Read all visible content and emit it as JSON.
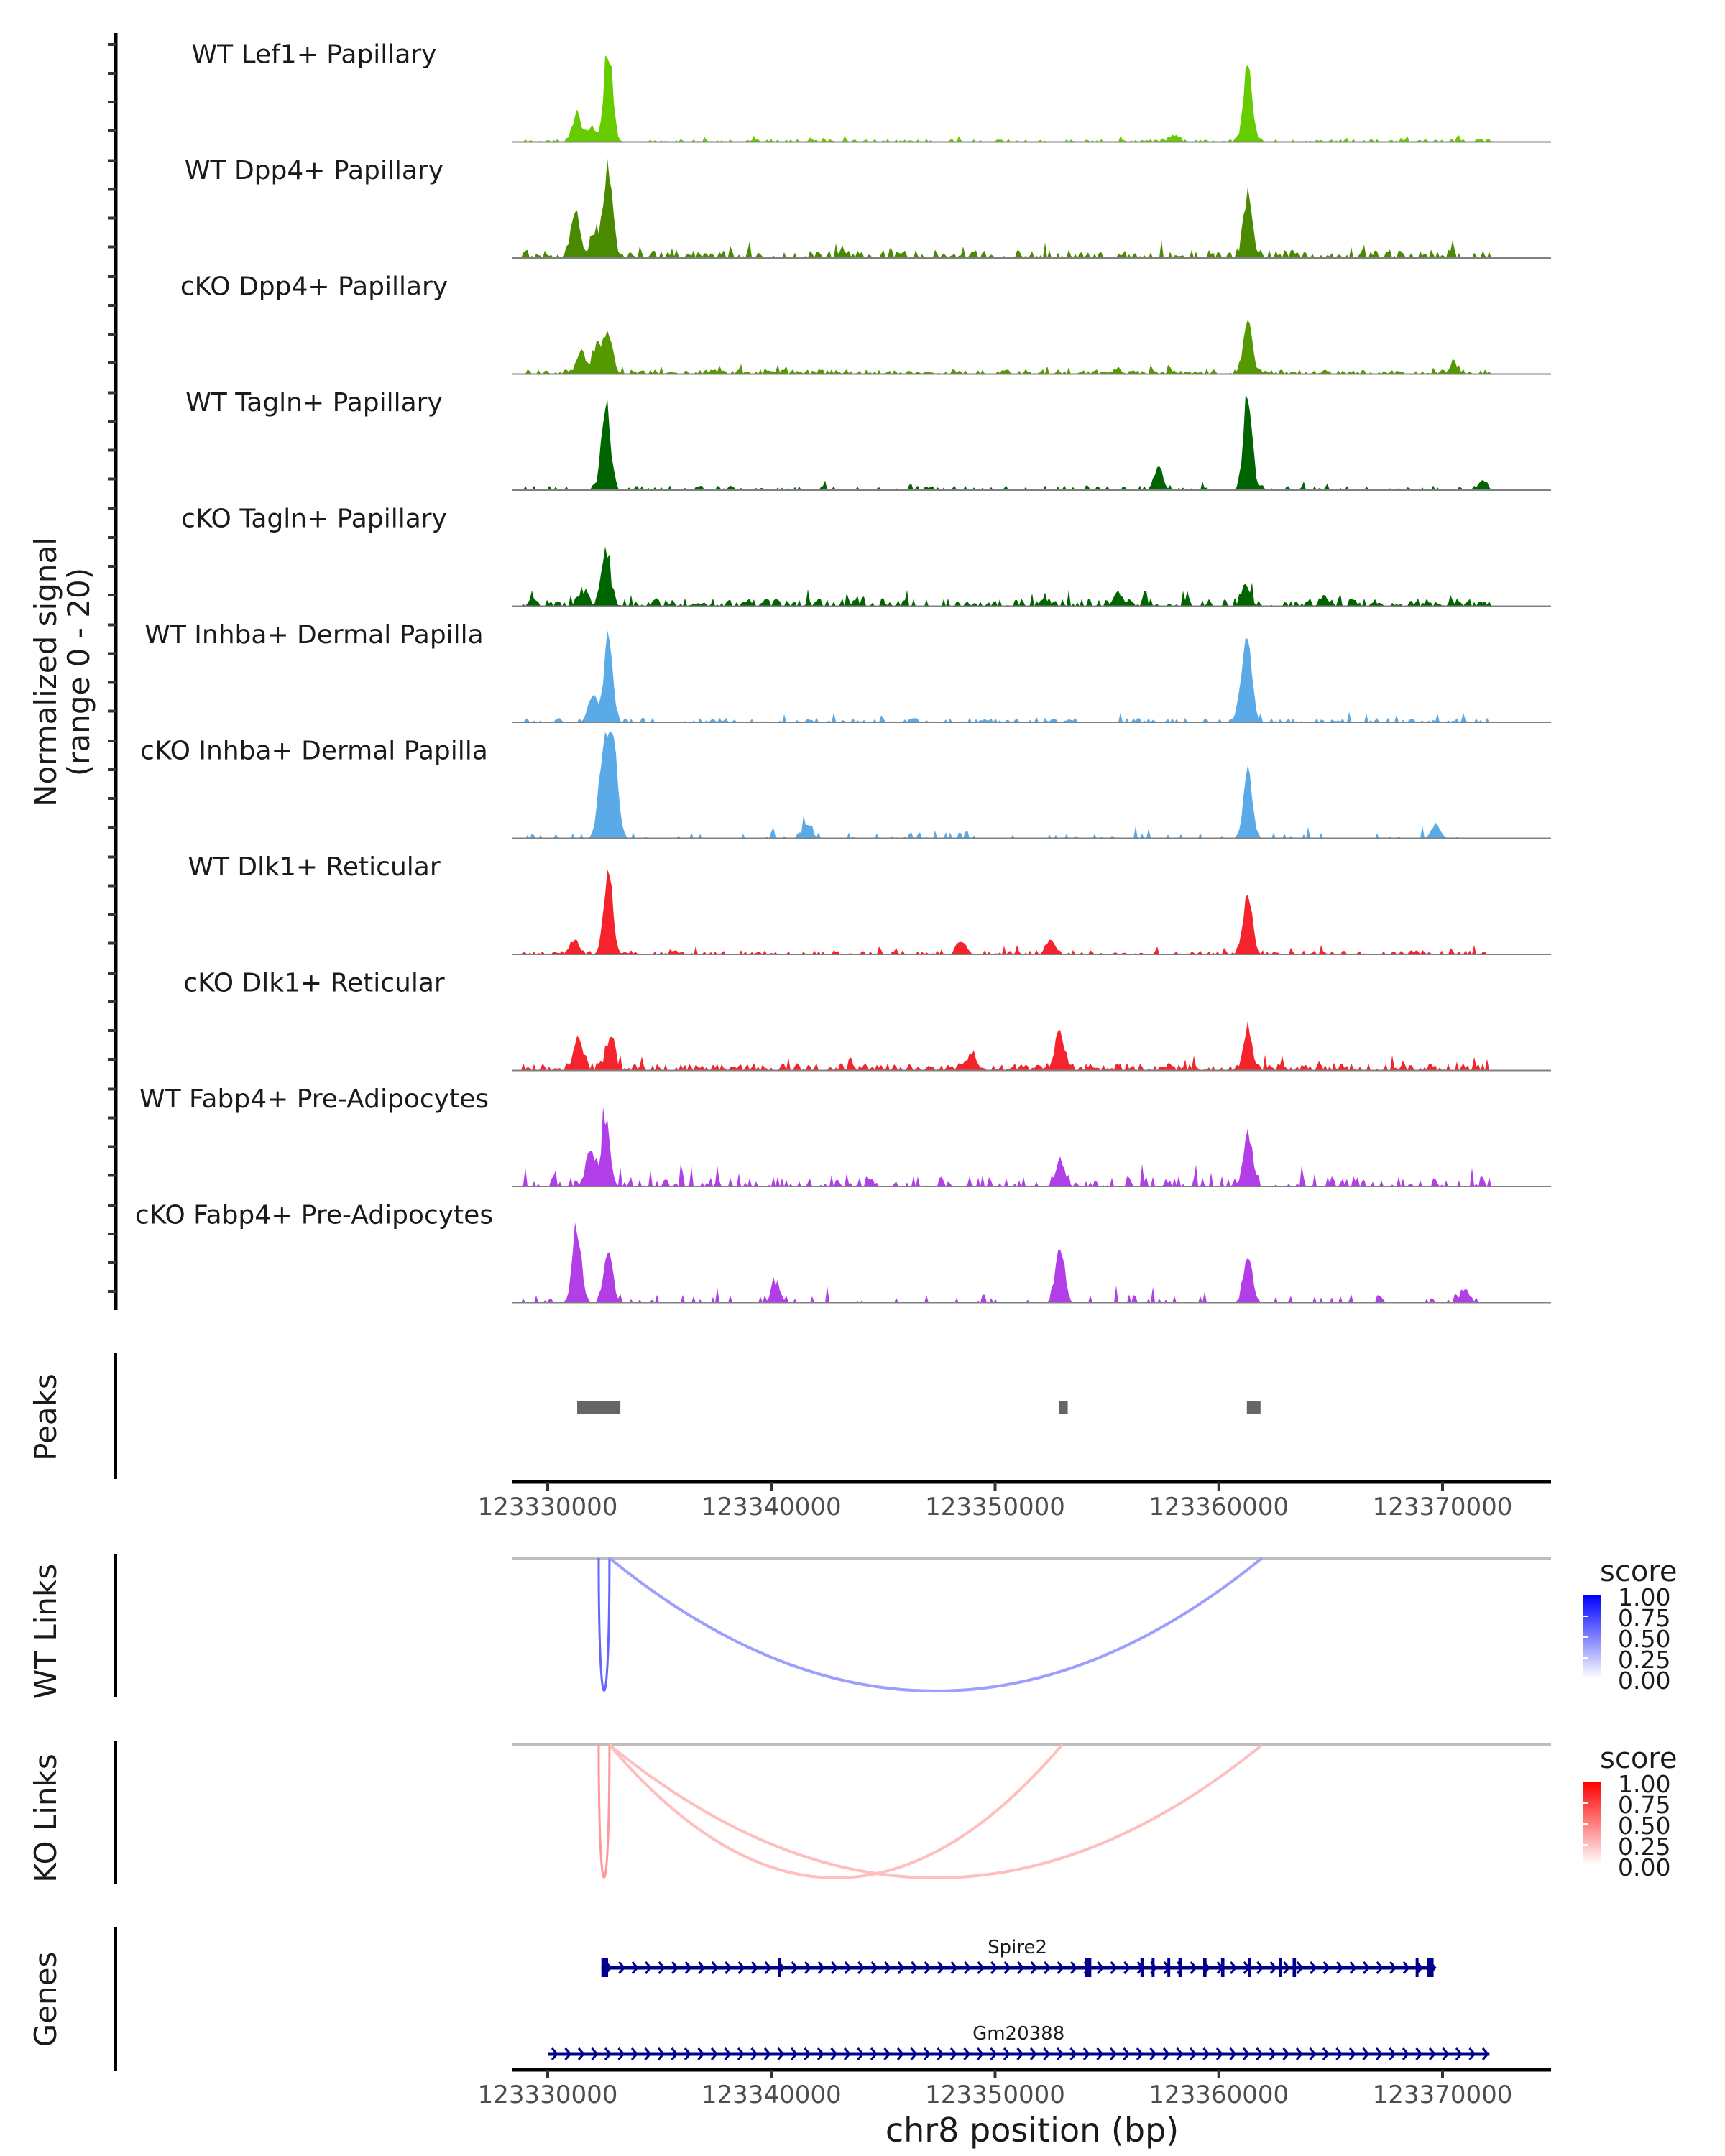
{
  "chart_data": {
    "type": "area",
    "title": "",
    "region": {
      "chrom": "chr8",
      "start": 123328425,
      "end": 123374115
    },
    "ylabel": [
      "Normalized signal",
      "(range 0 - 20)"
    ],
    "ylim": [
      0,
      20
    ],
    "xlabel": "chr8 position (bp)",
    "x_ticks": [
      123330000,
      123340000,
      123350000,
      123360000,
      123370000
    ],
    "x_tick_labels": [
      "123330000",
      "123340000",
      "123350000",
      "123360000",
      "123370000"
    ],
    "coverage_tracks": [
      {
        "name": "WT Lef1+ Papillary",
        "color": "#66cc00",
        "noise": 0.6,
        "density": 0.55,
        "peaks": [
          [
            123331300,
            6
          ],
          [
            123331900,
            3
          ],
          [
            123332700,
            20
          ],
          [
            123361300,
            16
          ],
          [
            123358000,
            1.5
          ]
        ]
      },
      {
        "name": "WT Dpp4+ Papillary",
        "color": "#4a8a00",
        "noise": 1.6,
        "density": 0.7,
        "peaks": [
          [
            123331250,
            10
          ],
          [
            123332100,
            5
          ],
          [
            123332700,
            20
          ],
          [
            123361300,
            14
          ]
        ]
      },
      {
        "name": "cKO Dpp4+ Papillary",
        "color": "#559900",
        "noise": 0.9,
        "density": 0.75,
        "peaks": [
          [
            123331500,
            5
          ],
          [
            123332200,
            6
          ],
          [
            123332700,
            9
          ],
          [
            123361300,
            11
          ],
          [
            123370500,
            2
          ]
        ]
      },
      {
        "name": "WT Tagln+ Papillary",
        "color": "#006400",
        "noise": 0.9,
        "density": 0.35,
        "peaks": [
          [
            123332600,
            20
          ],
          [
            123357300,
            5
          ],
          [
            123361300,
            20
          ],
          [
            123371800,
            2
          ]
        ]
      },
      {
        "name": "cKO Tagln+ Papillary",
        "color": "#006400",
        "noise": 1.5,
        "density": 0.7,
        "peaks": [
          [
            123332600,
            12
          ],
          [
            123331600,
            3
          ],
          [
            123361200,
            4
          ],
          [
            123355500,
            3
          ]
        ]
      },
      {
        "name": "WT Inhba+ Dermal Papilla",
        "color": "#5aaae8",
        "noise": 0.9,
        "density": 0.4,
        "peaks": [
          [
            123332700,
            18
          ],
          [
            123332000,
            6
          ],
          [
            123361300,
            16
          ],
          [
            123361000,
            5
          ]
        ]
      },
      {
        "name": "cKO Inhba+ Dermal Papilla",
        "color": "#5aaae8",
        "noise": 1.2,
        "density": 0.18,
        "peaks": [
          [
            123332700,
            16
          ],
          [
            123332400,
            11
          ],
          [
            123333000,
            14
          ],
          [
            123361300,
            15
          ],
          [
            123341600,
            3
          ],
          [
            123369700,
            3
          ]
        ]
      },
      {
        "name": "WT Dlk1+ Reticular",
        "color": "#f5232b",
        "noise": 0.8,
        "density": 0.45,
        "peaks": [
          [
            123332700,
            18
          ],
          [
            123331200,
            3
          ],
          [
            123361300,
            14
          ],
          [
            123348500,
            3
          ],
          [
            123352500,
            3
          ]
        ]
      },
      {
        "name": "cKO Dlk1+ Reticular",
        "color": "#f5232b",
        "noise": 1.4,
        "density": 0.8,
        "peaks": [
          [
            123331400,
            7
          ],
          [
            123332800,
            7
          ],
          [
            123352900,
            8
          ],
          [
            123361300,
            8
          ],
          [
            123349000,
            3
          ]
        ]
      },
      {
        "name": "WT Fabp4+ Pre-Adipocytes",
        "color": "#b23ee8",
        "noise": 2.0,
        "density": 0.45,
        "peaks": [
          [
            123332600,
            14
          ],
          [
            123331900,
            8
          ],
          [
            123352900,
            6
          ],
          [
            123361300,
            11
          ]
        ]
      },
      {
        "name": "cKO Fabp4+ Pre-Adipocytes",
        "color": "#b23ee8",
        "noise": 1.6,
        "density": 0.22,
        "peaks": [
          [
            123331300,
            16
          ],
          [
            123332700,
            11
          ],
          [
            123352900,
            13
          ],
          [
            123361300,
            9
          ],
          [
            123340200,
            4
          ],
          [
            123371000,
            3
          ]
        ]
      }
    ],
    "peaks_track": {
      "label": "Peaks",
      "color": "#666666",
      "regions": [
        [
          123331318,
          123333248
        ],
        [
          123352862,
          123353248
        ],
        [
          123361254,
          123361865
        ]
      ]
    },
    "link_tracks": [
      {
        "label": "WT Links",
        "baseline_color": "#bebebe",
        "links": [
          {
            "start": 123332280,
            "end": 123332760,
            "score": 0.6
          },
          {
            "start": 123332760,
            "end": 123361930,
            "score": 0.38
          }
        ],
        "legend": {
          "title": "score",
          "low_color": "#ffffff",
          "high_color": "#0000ff",
          "breaks": [
            "1.00",
            "0.75",
            "0.50",
            "0.25",
            "0.00"
          ]
        }
      },
      {
        "label": "KO Links",
        "baseline_color": "#bebebe",
        "links": [
          {
            "start": 123332280,
            "end": 123332760,
            "score": 0.4
          },
          {
            "start": 123332760,
            "end": 123352990,
            "score": 0.25
          },
          {
            "start": 123332760,
            "end": 123361930,
            "score": 0.25
          }
        ],
        "legend": {
          "title": "score",
          "low_color": "#ffffff",
          "high_color": "#ff0000",
          "breaks": [
            "1.00",
            "0.75",
            "0.50",
            "0.25",
            "0.00"
          ]
        }
      }
    ],
    "genes_track": {
      "label": "Genes",
      "color": "#00008b",
      "genes": [
        {
          "name": "Spire2",
          "start": 123332400,
          "end": 123369600,
          "strand": "+",
          "exons": [
            [
              123332400,
              123332700
            ],
            [
              123340300,
              123340350
            ],
            [
              123354000,
              123354300
            ],
            [
              123356500,
              123356650
            ],
            [
              123357000,
              123357100
            ],
            [
              123357700,
              123357800
            ],
            [
              123358200,
              123358350
            ],
            [
              123359300,
              123359450
            ],
            [
              123360100,
              123360250
            ],
            [
              123361300,
              123361400
            ],
            [
              123362700,
              123362800
            ],
            [
              123363300,
              123363450
            ],
            [
              123368800,
              123368900
            ],
            [
              123369300,
              123369600
            ]
          ]
        },
        {
          "name": "Gm20388",
          "start": 123330000,
          "end": 123372100,
          "strand": "+",
          "exons": []
        }
      ]
    }
  }
}
